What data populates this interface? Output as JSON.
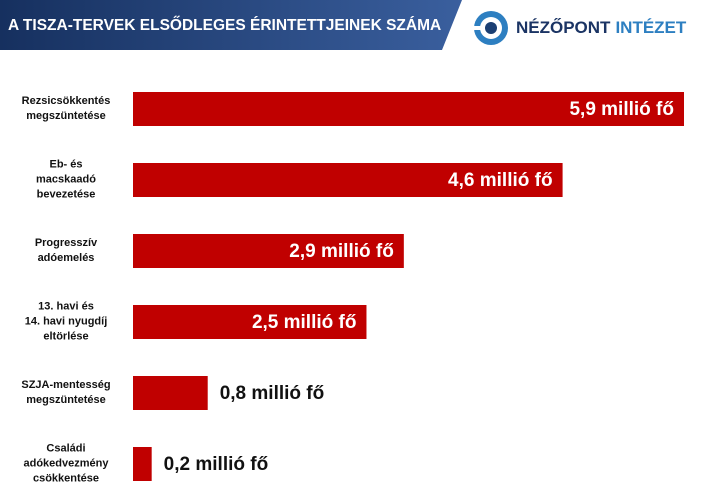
{
  "chart_data": {
    "type": "hbar",
    "title": "A TISZA-TERVEK ELSŐDLEGES ÉRINTETTJEINEK SZÁMA",
    "logo": {
      "name": "NÉZŐPONT",
      "suffix": "INTÉZET"
    },
    "categories": [
      "Rezsicsökkentés\nmegszüntetése",
      "Eb- és\nmacskaadó\nbevezetése",
      "Progresszív\nadóemelés",
      "13. havi és\n14. havi nyugdíj\neltörlése",
      "SZJA-mentesség\nmegszüntetése",
      "Családi\nadókedvezmény\ncsökkentése"
    ],
    "values": [
      5.9,
      4.6,
      2.9,
      2.5,
      0.8,
      0.2
    ],
    "value_labels": [
      "5,9 millió fő",
      "4,6 millió fő",
      "2,9 millió fő",
      "2,5 millió fő",
      "0,8 millió fő",
      "0,2 millió fő"
    ],
    "color": "#c00000"
  }
}
